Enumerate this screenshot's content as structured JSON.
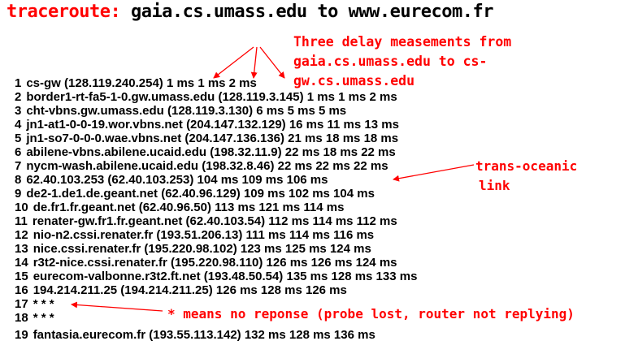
{
  "title": {
    "command": "traceroute:",
    "rest": " gaia.cs.umass.edu to www.eurecom.fr"
  },
  "annotations": {
    "delay_note": [
      "Three delay measements from",
      "gaia.cs.umass.edu to cs-",
      "gw.cs.umass.edu"
    ],
    "transoceanic_note": [
      "trans-oceanic",
      "link"
    ],
    "no_response_note": "* means no reponse (probe lost, router not replying)"
  },
  "colors": {
    "accent": "#ff0000",
    "text": "#000000",
    "background": "#ffffff"
  },
  "hops": [
    {
      "num": "1",
      "text": "cs-gw (128.119.240.254)  1 ms  1 ms  2 ms"
    },
    {
      "num": "2",
      "text": "border1-rt-fa5-1-0.gw.umass.edu (128.119.3.145)  1 ms  1 ms  2 ms"
    },
    {
      "num": "3",
      "text": "cht-vbns.gw.umass.edu (128.119.3.130)  6 ms 5 ms 5 ms"
    },
    {
      "num": "4",
      "text": "jn1-at1-0-0-19.wor.vbns.net (204.147.132.129)  16 ms 11 ms 13 ms"
    },
    {
      "num": "5",
      "text": "jn1-so7-0-0-0.wae.vbns.net (204.147.136.136)  21 ms 18 ms 18 ms"
    },
    {
      "num": "6",
      "text": "abilene-vbns.abilene.ucaid.edu (198.32.11.9)  22 ms  18 ms  22 ms"
    },
    {
      "num": "7",
      "text": "nycm-wash.abilene.ucaid.edu (198.32.8.46)  22 ms  22 ms  22 ms"
    },
    {
      "num": "8",
      "text": "62.40.103.253 (62.40.103.253)  104 ms 109 ms 106 ms"
    },
    {
      "num": "9",
      "text": "de2-1.de1.de.geant.net (62.40.96.129)  109 ms 102 ms 104 ms"
    },
    {
      "num": "10",
      "text": "de.fr1.fr.geant.net (62.40.96.50)  113 ms 121 ms 114 ms"
    },
    {
      "num": "11",
      "text": "renater-gw.fr1.fr.geant.net (62.40.103.54)  112 ms  114 ms  112 ms"
    },
    {
      "num": "12",
      "text": "nio-n2.cssi.renater.fr (193.51.206.13)  111 ms  114 ms  116 ms"
    },
    {
      "num": "13",
      "text": "nice.cssi.renater.fr (195.220.98.102)  123 ms  125 ms  124 ms"
    },
    {
      "num": "14",
      "text": "r3t2-nice.cssi.renater.fr (195.220.98.110)  126 ms  126 ms  124 ms"
    },
    {
      "num": "15",
      "text": "eurecom-valbonne.r3t2.ft.net (193.48.50.54)  135 ms  128 ms  133 ms"
    },
    {
      "num": "16",
      "text": "194.214.211.25 (194.214.211.25)  126 ms  128 ms  126 ms"
    },
    {
      "num": "17",
      "text": "* * *"
    },
    {
      "num": "18",
      "text": "* * *"
    },
    {
      "num": "19",
      "text": "fantasia.eurecom.fr (193.55.113.142)  132 ms  128 ms  136 ms"
    }
  ]
}
